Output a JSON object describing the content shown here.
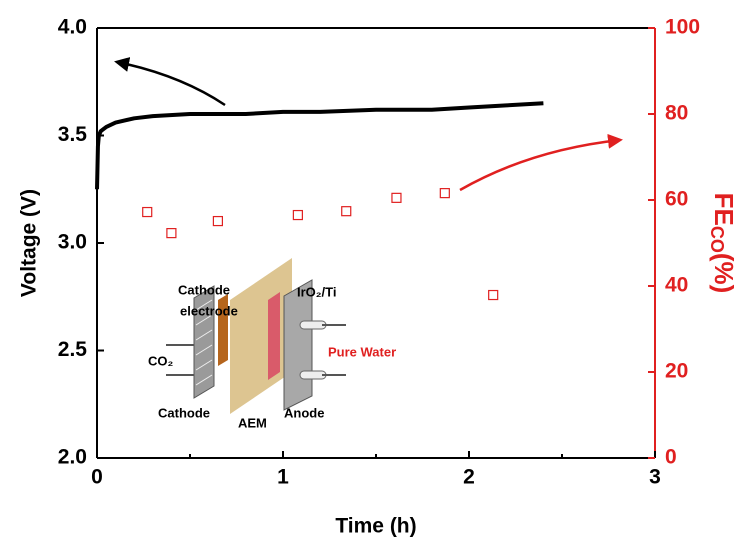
{
  "chart_data": {
    "type": "line",
    "x_label": "Time (h)",
    "y_label": "Voltage (V)",
    "y2_label": {
      "main": "FE",
      "sub": "CO",
      "suffix": "(%)"
    },
    "xlim": [
      0,
      3
    ],
    "xticks": [
      0,
      1,
      2,
      3
    ],
    "ylim": [
      2.0,
      4.0
    ],
    "yticks": [
      {
        "value": 2.0,
        "label": "2.0"
      },
      {
        "value": 2.5,
        "label": "2.5"
      },
      {
        "value": 3.0,
        "label": "3.0"
      },
      {
        "value": 3.5,
        "label": "3.5"
      },
      {
        "value": 4.0,
        "label": "4.0"
      }
    ],
    "y2lim": [
      0,
      100
    ],
    "y2ticks": [
      0,
      20,
      40,
      60,
      80,
      100
    ],
    "series": [
      {
        "color": "#000000",
        "marker": "line",
        "x": [
          0,
          0.005,
          0.01,
          0.02,
          0.05,
          0.1,
          0.2,
          0.3,
          0.5,
          0.8,
          1.0,
          1.2,
          1.5,
          1.8,
          2.0,
          2.2,
          2.4
        ],
        "values": [
          3.25,
          3.45,
          3.5,
          3.52,
          3.54,
          3.56,
          3.58,
          3.59,
          3.6,
          3.6,
          3.61,
          3.61,
          3.62,
          3.62,
          3.63,
          3.64,
          3.65
        ]
      },
      {
        "color": "#e02020",
        "marker": "square",
        "axis": "y2",
        "x": [
          0.27,
          0.4,
          0.65,
          1.08,
          1.34,
          1.61,
          1.87,
          2.13
        ],
        "values": [
          57.2,
          52.3,
          55.1,
          56.5,
          57.4,
          60.5,
          61.6,
          37.9
        ]
      }
    ],
    "inset_labels": {
      "cathode_electrode_1": "Cathode",
      "cathode_electrode_2": "electrode",
      "anode_material": "IrO₂/Ti",
      "gas": "CO₂",
      "water": "Pure Water",
      "cathode": "Cathode",
      "membrane": "AEM",
      "anode": "Anode"
    }
  }
}
